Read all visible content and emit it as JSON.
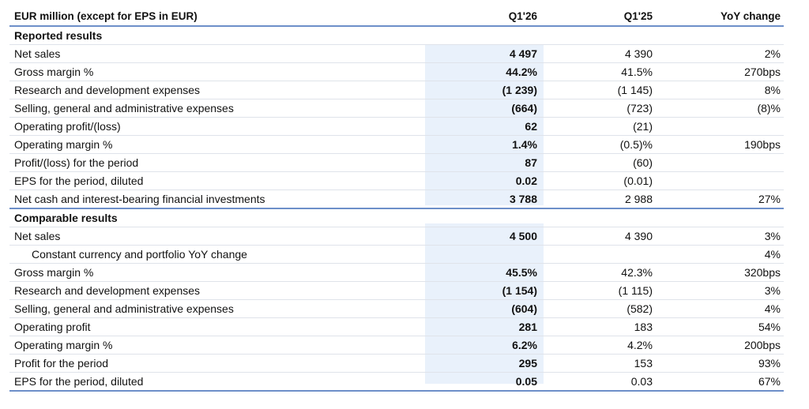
{
  "header": {
    "label": "EUR million (except for EPS in EUR)",
    "col_current": "Q1'26",
    "col_prior": "Q1'25",
    "col_change": "YoY change"
  },
  "colors": {
    "rule": "#6d8fc9",
    "highlight": "#e9f1fb",
    "divider": "#dfe3ea"
  },
  "reported": {
    "title": "Reported results",
    "rows": [
      {
        "label": "Net sales",
        "current": "4 497",
        "prior": "4 390",
        "change": "2%"
      },
      {
        "label": "Gross margin %",
        "current": "44.2%",
        "prior": "41.5%",
        "change": "270bps"
      },
      {
        "label": "Research and development expenses",
        "current": "(1 239)",
        "prior": "(1 145)",
        "change": "8%"
      },
      {
        "label": "Selling, general and administrative expenses",
        "current": "(664)",
        "prior": "(723)",
        "change": "(8)%"
      },
      {
        "label": "Operating profit/(loss)",
        "current": "62",
        "prior": "(21)",
        "change": ""
      },
      {
        "label": "Operating margin %",
        "current": "1.4%",
        "prior": "(0.5)%",
        "change": "190bps"
      },
      {
        "label": "Profit/(loss) for the period",
        "current": "87",
        "prior": "(60)",
        "change": ""
      },
      {
        "label": "EPS for the period, diluted",
        "current": "0.02",
        "prior": "(0.01)",
        "change": ""
      },
      {
        "label": "Net cash and interest-bearing financial investments",
        "current": "3 788",
        "prior": "2 988",
        "change": "27%"
      }
    ]
  },
  "comparable": {
    "title": "Comparable results",
    "rows": [
      {
        "label": "Net sales",
        "current": "4 500",
        "prior": "4 390",
        "change": "3%"
      },
      {
        "label": "Constant currency and portfolio YoY change",
        "current": "",
        "prior": "",
        "change": "4%"
      },
      {
        "label": "Gross margin %",
        "current": "45.5%",
        "prior": "42.3%",
        "change": "320bps"
      },
      {
        "label": "Research and development expenses",
        "current": "(1 154)",
        "prior": "(1 115)",
        "change": "3%"
      },
      {
        "label": "Selling, general and administrative expenses",
        "current": "(604)",
        "prior": "(582)",
        "change": "4%"
      },
      {
        "label": "Operating profit",
        "current": "281",
        "prior": "183",
        "change": "54%"
      },
      {
        "label": "Operating margin %",
        "current": "6.2%",
        "prior": "4.2%",
        "change": "200bps"
      },
      {
        "label": "Profit for the period",
        "current": "295",
        "prior": "153",
        "change": "93%"
      },
      {
        "label": "EPS for the period, diluted",
        "current": "0.05",
        "prior": "0.03",
        "change": "67%"
      }
    ]
  }
}
